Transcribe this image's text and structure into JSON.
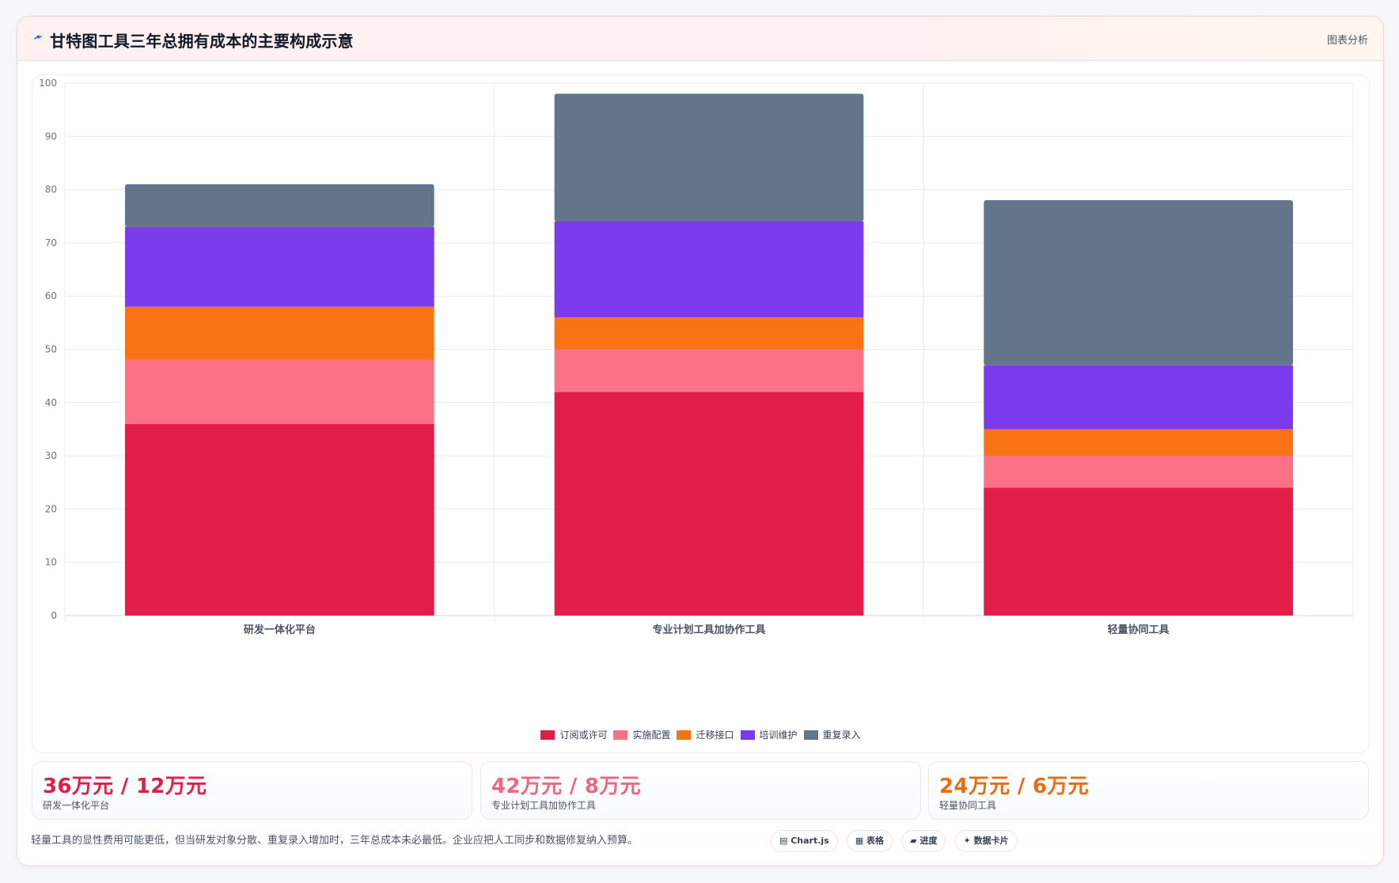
{
  "header": {
    "icon": "lightning-icon",
    "title": "甘特图工具三年总拥有成本的主要构成示意",
    "tag": "图表分析"
  },
  "chart_data": {
    "type": "bar",
    "stacked": true,
    "categories": [
      "研发一体化平台",
      "专业计划工具加协作工具",
      "轻量协同工具"
    ],
    "series": [
      {
        "name": "订阅或许可",
        "color": "#e11d48",
        "values": [
          36,
          42,
          24
        ]
      },
      {
        "name": "实施配置",
        "color": "#fb7185",
        "values": [
          12,
          8,
          6
        ]
      },
      {
        "name": "迁移接口",
        "color": "#f97316",
        "values": [
          10,
          6,
          5
        ]
      },
      {
        "name": "培训维护",
        "color": "#7c3aed",
        "values": [
          15,
          18,
          12
        ]
      },
      {
        "name": "重复录入",
        "color": "#64748b",
        "values": [
          8,
          24,
          31
        ]
      }
    ],
    "ylim": [
      0,
      100
    ],
    "yticks": [
      0,
      10,
      20,
      30,
      40,
      50,
      60,
      70,
      80,
      90,
      100
    ],
    "grid": true,
    "legend_position": "bottom"
  },
  "stats": [
    {
      "value": "36万元 / 12万元",
      "label": "研发一体化平台",
      "color": "#e11d48"
    },
    {
      "value": "42万元 / 8万元",
      "label": "专业计划工具加协作工具",
      "color": "#f0667e"
    },
    {
      "value": "24万元 / 6万元",
      "label": "轻量协同工具",
      "color": "#ea6c0f"
    }
  ],
  "footnote": "轻量工具的显性费用可能更低，但当研发对象分散、重复录入增加时，三年总成本未必最低。企业应把人工同步和数据修复纳入预算。",
  "chips": [
    {
      "label": "▤ Chart.js",
      "icon": "chart-icon"
    },
    {
      "label": "▦ 表格",
      "icon": "table-icon"
    },
    {
      "label": "▰ 进度",
      "icon": "progress-icon"
    },
    {
      "label": "✦ 数据卡片",
      "icon": "sparkle-icon"
    }
  ]
}
